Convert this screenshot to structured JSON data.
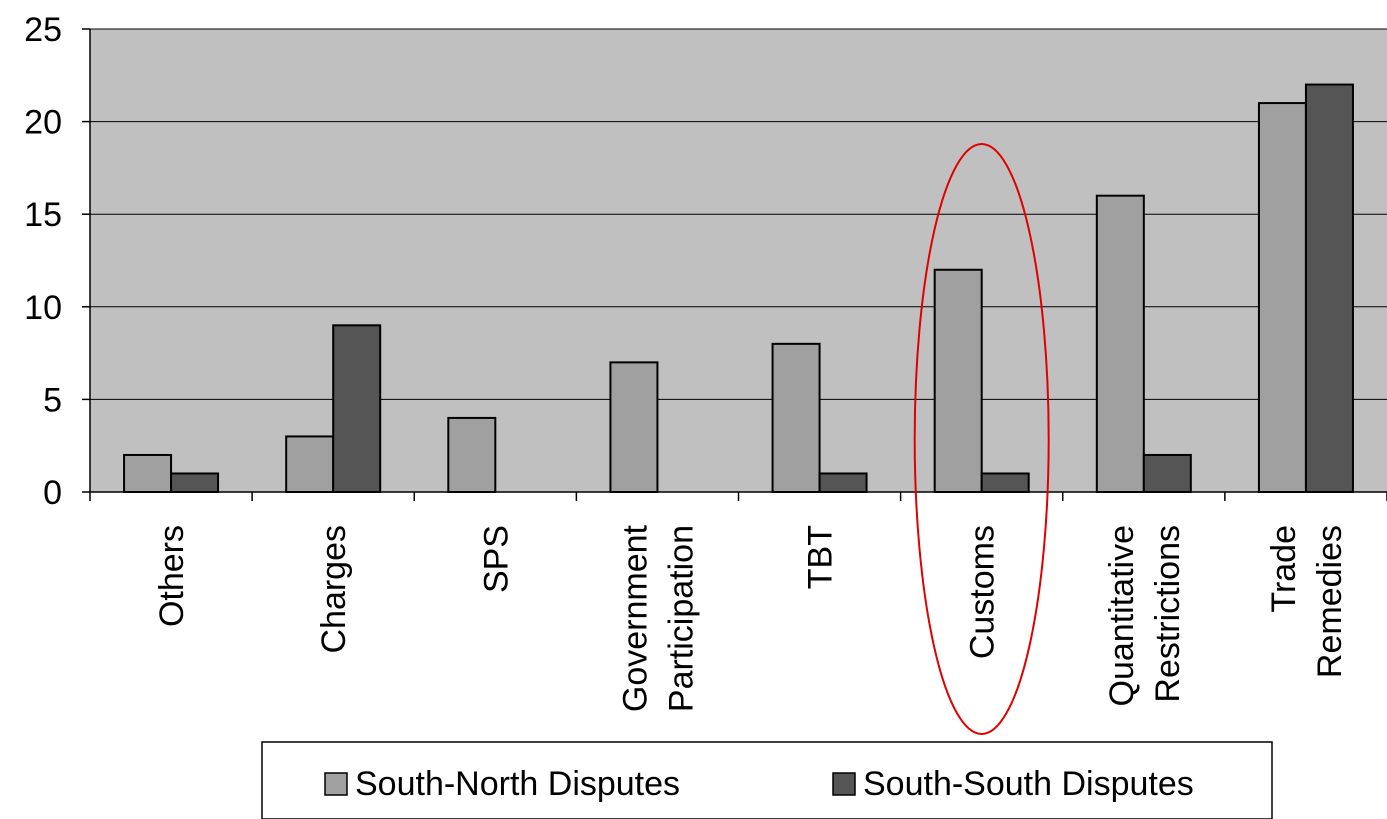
{
  "chart_data": {
    "type": "bar",
    "categories": [
      [
        "Others"
      ],
      [
        "Charges"
      ],
      [
        "SPS"
      ],
      [
        "Government",
        "Participation"
      ],
      [
        "TBT"
      ],
      [
        "Customs"
      ],
      [
        "Quantitative",
        "Restrictions"
      ],
      [
        "Trade",
        "Remedies"
      ]
    ],
    "series": [
      {
        "name": "South-North Disputes",
        "color": "#a0a0a0",
        "values": [
          2,
          3,
          4,
          7,
          8,
          12,
          16,
          21
        ]
      },
      {
        "name": "South-South Disputes",
        "color": "#555555",
        "values": [
          1,
          9,
          0,
          0,
          1,
          1,
          2,
          22
        ]
      }
    ],
    "ylim": [
      0,
      25
    ],
    "yticks": [
      0,
      5,
      10,
      15,
      20,
      25
    ],
    "grid": true,
    "plot_background": "#c0c0c0",
    "highlight": {
      "category": "Customs",
      "shape": "ellipse",
      "color": "#e00000"
    },
    "legend_position": "bottom"
  }
}
